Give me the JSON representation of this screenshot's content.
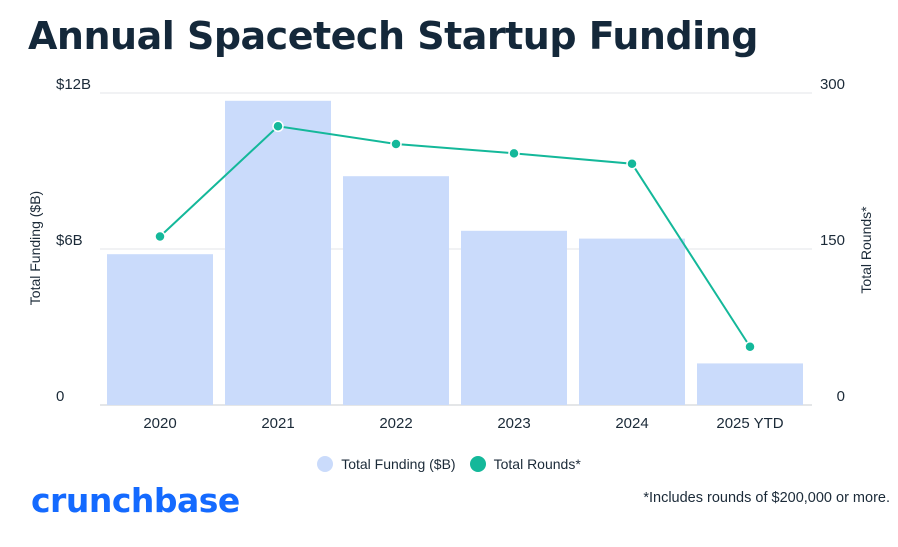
{
  "chart_data": {
    "type": "bar",
    "title": "Annual Spacetech Startup Funding",
    "categories": [
      "2020",
      "2021",
      "2022",
      "2023",
      "2024",
      "2025 YTD"
    ],
    "series": [
      {
        "name": "Total Funding ($B)",
        "kind": "bar",
        "axis": "left",
        "values": [
          5.8,
          11.7,
          8.8,
          6.7,
          6.4,
          1.6
        ]
      },
      {
        "name": "Total Rounds*",
        "kind": "line",
        "axis": "right",
        "values": [
          162,
          268,
          251,
          242,
          232,
          56
        ]
      }
    ],
    "y_left": {
      "label": "Total Funding ($B)",
      "ticks": [
        "0",
        "$6B",
        "$12B"
      ],
      "range": [
        0,
        12
      ]
    },
    "y_right": {
      "label": "Total Rounds*",
      "ticks": [
        "0",
        "150",
        "300"
      ],
      "range": [
        0,
        300
      ]
    },
    "grid": true,
    "legend": "bottom-center",
    "colors": {
      "bar": "#cadbfb",
      "line": "#14b89a",
      "grid": "#e3e6ea"
    }
  },
  "legend": {
    "funding_label": "Total Funding ($B)",
    "rounds_label": "Total Rounds*"
  },
  "brand": {
    "logo_text": "crunchbase",
    "logo_color": "#146aff"
  },
  "footnote": "*Includes rounds of $200,000 or more."
}
